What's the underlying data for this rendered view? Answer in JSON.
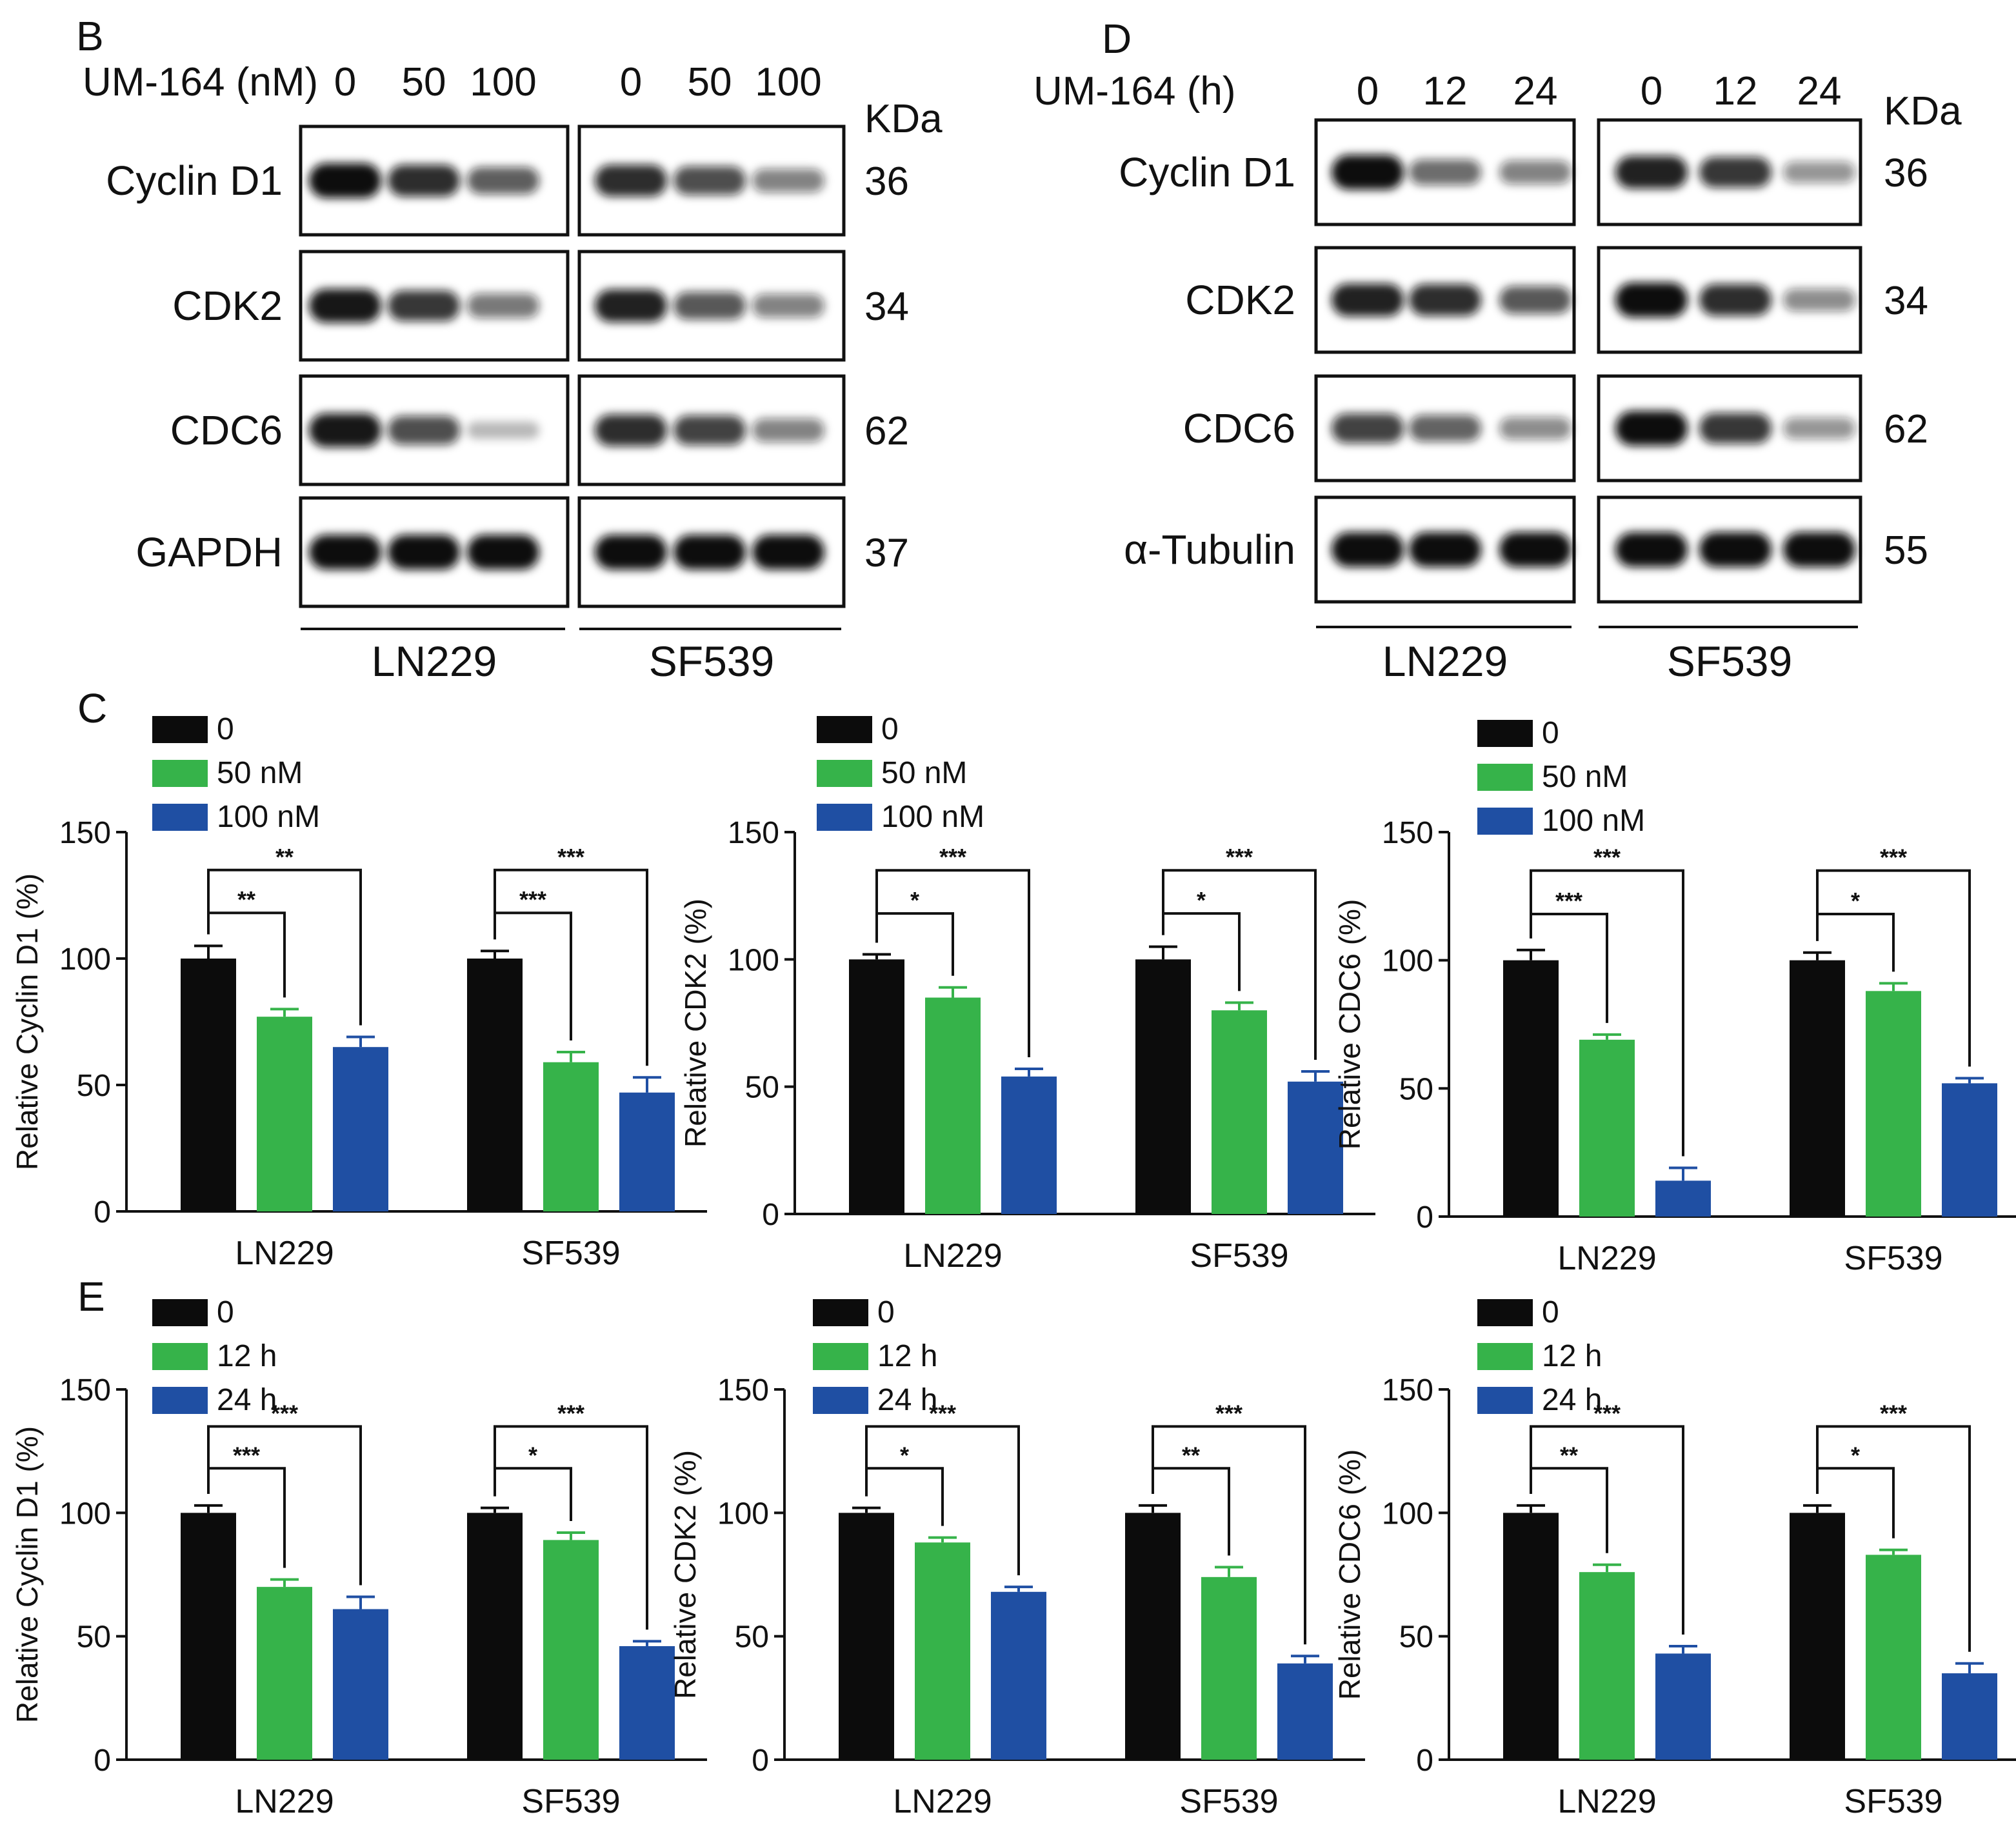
{
  "colors": {
    "black": "#0c0c0c",
    "green": "#36b34a",
    "blue": "#1f4fa3",
    "axis": "#111111",
    "blot_bg": "#ffffff"
  },
  "panel_letters": {
    "B": "B",
    "C": "C",
    "D": "D",
    "E": "E"
  },
  "blots": [
    {
      "id": "B",
      "header_label": "UM-164 (nM)",
      "lanes": [
        "0",
        "50",
        "100",
        "0",
        "50",
        "100"
      ],
      "kda_label": "KDa",
      "cell_lines": [
        "LN229",
        "SF539"
      ],
      "rows": [
        {
          "protein": "Cyclin D1",
          "kda": "36",
          "bands": [
            1.0,
            0.85,
            0.62,
            0.85,
            0.7,
            0.45
          ]
        },
        {
          "protein": "CDK2",
          "kda": "34",
          "bands": [
            0.95,
            0.8,
            0.5,
            0.9,
            0.65,
            0.45
          ]
        },
        {
          "protein": "CDC6",
          "kda": "62",
          "bands": [
            0.95,
            0.7,
            0.15,
            0.85,
            0.75,
            0.45
          ]
        },
        {
          "protein": "GAPDH",
          "kda": "37",
          "bands": [
            1.0,
            1.0,
            1.0,
            1.0,
            1.0,
            1.0
          ]
        }
      ]
    },
    {
      "id": "D",
      "header_label": "UM-164 (h)",
      "lanes": [
        "0",
        "12",
        "24",
        "0",
        "12",
        "24"
      ],
      "kda_label": "KDa",
      "cell_lines": [
        "LN229",
        "SF539"
      ],
      "rows": [
        {
          "protein": "Cyclin D1",
          "kda": "36",
          "bands": [
            1.0,
            0.55,
            0.45,
            0.9,
            0.8,
            0.35
          ]
        },
        {
          "protein": "CDK2",
          "kda": "34",
          "bands": [
            0.9,
            0.85,
            0.65,
            1.0,
            0.85,
            0.4
          ]
        },
        {
          "protein": "CDC6",
          "kda": "62",
          "bands": [
            0.75,
            0.6,
            0.4,
            1.0,
            0.8,
            0.35
          ]
        },
        {
          "protein": "α-Tubulin",
          "kda": "55",
          "bands": [
            1.0,
            1.0,
            1.0,
            1.0,
            1.0,
            1.0
          ]
        }
      ]
    }
  ],
  "chart_data": [
    {
      "panel": "C",
      "type": "bar",
      "categories": [
        "LN229",
        "SF539"
      ],
      "ylabel": "Relative Cyclin D1 (%)",
      "ylim": [
        0,
        150
      ],
      "yticks": [
        0,
        50,
        100,
        150
      ],
      "legend": [
        "0",
        "50 nM",
        "100 nM"
      ],
      "series": [
        {
          "name": "0",
          "values": [
            100,
            100
          ],
          "errors": [
            5,
            3
          ]
        },
        {
          "name": "50 nM",
          "values": [
            77,
            59
          ],
          "errors": [
            3,
            4
          ]
        },
        {
          "name": "100 nM",
          "values": [
            65,
            47
          ],
          "errors": [
            4,
            6
          ]
        }
      ],
      "significance": [
        {
          "group": 0,
          "pair": "50 nM",
          "label": "**"
        },
        {
          "group": 0,
          "pair": "100 nM",
          "label": "**"
        },
        {
          "group": 1,
          "pair": "50 nM",
          "label": "***"
        },
        {
          "group": 1,
          "pair": "100 nM",
          "label": "***"
        }
      ]
    },
    {
      "panel": "C",
      "type": "bar",
      "categories": [
        "LN229",
        "SF539"
      ],
      "ylabel": "Relative CDK2 (%)",
      "ylim": [
        0,
        150
      ],
      "yticks": [
        0,
        50,
        100,
        150
      ],
      "legend": [
        "0",
        "50 nM",
        "100 nM"
      ],
      "series": [
        {
          "name": "0",
          "values": [
            100,
            100
          ],
          "errors": [
            2,
            5
          ]
        },
        {
          "name": "50 nM",
          "values": [
            85,
            80
          ],
          "errors": [
            4,
            3
          ]
        },
        {
          "name": "100 nM",
          "values": [
            54,
            52
          ],
          "errors": [
            3,
            4
          ]
        }
      ],
      "significance": [
        {
          "group": 0,
          "pair": "50 nM",
          "label": "*"
        },
        {
          "group": 0,
          "pair": "100 nM",
          "label": "***"
        },
        {
          "group": 1,
          "pair": "50 nM",
          "label": "*"
        },
        {
          "group": 1,
          "pair": "100 nM",
          "label": "***"
        }
      ]
    },
    {
      "panel": "C",
      "type": "bar",
      "categories": [
        "LN229",
        "SF539"
      ],
      "ylabel": "Relative CDC6 (%)",
      "ylim": [
        0,
        150
      ],
      "yticks": [
        0,
        50,
        100,
        150
      ],
      "legend": [
        "0",
        "50 nM",
        "100 nM"
      ],
      "series": [
        {
          "name": "0",
          "values": [
            100,
            100
          ],
          "errors": [
            4,
            3
          ]
        },
        {
          "name": "50 nM",
          "values": [
            69,
            88
          ],
          "errors": [
            2,
            3
          ]
        },
        {
          "name": "100 nM",
          "values": [
            14,
            52
          ],
          "errors": [
            5,
            2
          ]
        }
      ],
      "significance": [
        {
          "group": 0,
          "pair": "50 nM",
          "label": "***"
        },
        {
          "group": 0,
          "pair": "100 nM",
          "label": "***"
        },
        {
          "group": 1,
          "pair": "50 nM",
          "label": "*"
        },
        {
          "group": 1,
          "pair": "100 nM",
          "label": "***"
        }
      ]
    },
    {
      "panel": "E",
      "type": "bar",
      "categories": [
        "LN229",
        "SF539"
      ],
      "ylabel": "Relative Cyclin D1 (%)",
      "ylim": [
        0,
        150
      ],
      "yticks": [
        0,
        50,
        100,
        150
      ],
      "legend": [
        "0",
        "12 h",
        "24 h"
      ],
      "series": [
        {
          "name": "0",
          "values": [
            100,
            100
          ],
          "errors": [
            3,
            2
          ]
        },
        {
          "name": "12 h",
          "values": [
            70,
            89
          ],
          "errors": [
            3,
            3
          ]
        },
        {
          "name": "24 h",
          "values": [
            61,
            46
          ],
          "errors": [
            5,
            2
          ]
        }
      ],
      "significance": [
        {
          "group": 0,
          "pair": "12 h",
          "label": "***"
        },
        {
          "group": 0,
          "pair": "24 h",
          "label": "***"
        },
        {
          "group": 1,
          "pair": "12 h",
          "label": "*"
        },
        {
          "group": 1,
          "pair": "24 h",
          "label": "***"
        }
      ]
    },
    {
      "panel": "E",
      "type": "bar",
      "categories": [
        "LN229",
        "SF539"
      ],
      "ylabel": "Relative CDK2 (%)",
      "ylim": [
        0,
        150
      ],
      "yticks": [
        0,
        50,
        100,
        150
      ],
      "legend": [
        "0",
        "12 h",
        "24 h"
      ],
      "series": [
        {
          "name": "0",
          "values": [
            100,
            100
          ],
          "errors": [
            2,
            3
          ]
        },
        {
          "name": "12 h",
          "values": [
            88,
            74
          ],
          "errors": [
            2,
            4
          ]
        },
        {
          "name": "24 h",
          "values": [
            68,
            39
          ],
          "errors": [
            2,
            3
          ]
        }
      ],
      "significance": [
        {
          "group": 0,
          "pair": "12 h",
          "label": "*"
        },
        {
          "group": 0,
          "pair": "24 h",
          "label": "***"
        },
        {
          "group": 1,
          "pair": "12 h",
          "label": "**"
        },
        {
          "group": 1,
          "pair": "24 h",
          "label": "***"
        }
      ]
    },
    {
      "panel": "E",
      "type": "bar",
      "categories": [
        "LN229",
        "SF539"
      ],
      "ylabel": "Relative CDC6 (%)",
      "ylim": [
        0,
        150
      ],
      "yticks": [
        0,
        50,
        100,
        150
      ],
      "legend": [
        "0",
        "12 h",
        "24 h"
      ],
      "series": [
        {
          "name": "0",
          "values": [
            100,
            100
          ],
          "errors": [
            3,
            3
          ]
        },
        {
          "name": "12 h",
          "values": [
            76,
            83
          ],
          "errors": [
            3,
            2
          ]
        },
        {
          "name": "24 h",
          "values": [
            43,
            35
          ],
          "errors": [
            3,
            4
          ]
        }
      ],
      "significance": [
        {
          "group": 0,
          "pair": "12 h",
          "label": "**"
        },
        {
          "group": 0,
          "pair": "24 h",
          "label": "***"
        },
        {
          "group": 1,
          "pair": "12 h",
          "label": "*"
        },
        {
          "group": 1,
          "pair": "24 h",
          "label": "***"
        }
      ]
    }
  ]
}
